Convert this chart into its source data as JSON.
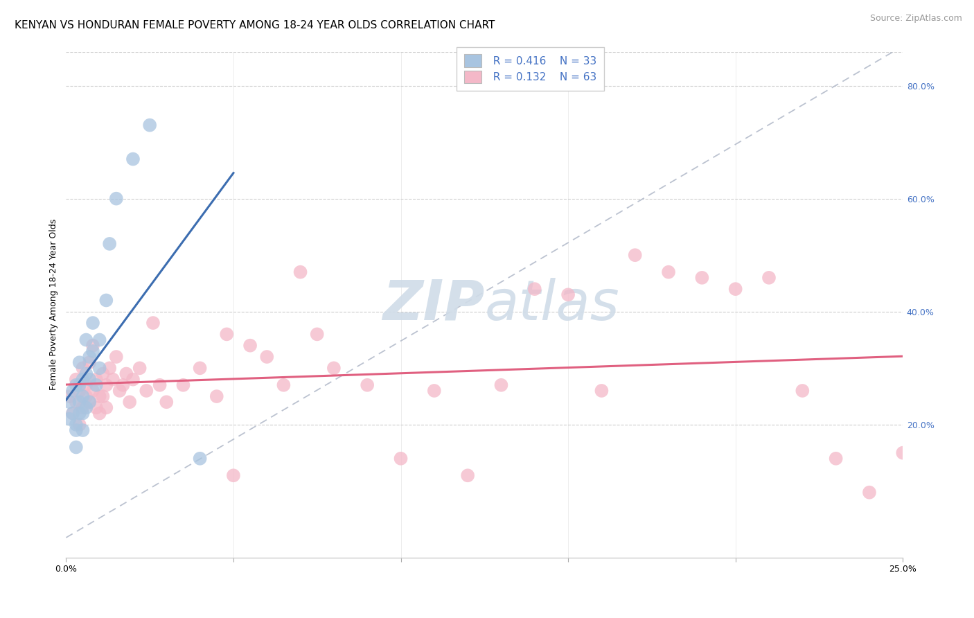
{
  "title": "KENYAN VS HONDURAN FEMALE POVERTY AMONG 18-24 YEAR OLDS CORRELATION CHART",
  "source": "Source: ZipAtlas.com",
  "xlabel_bottom_left": "0.0%",
  "xlabel_bottom_right": "25.0%",
  "ylabel": "Female Poverty Among 18-24 Year Olds",
  "right_yticks": [
    0.2,
    0.4,
    0.6,
    0.8
  ],
  "right_yticklabels": [
    "20.0%",
    "40.0%",
    "60.0%",
    "80.0%"
  ],
  "kenyan_color": "#a8c4e0",
  "honduran_color": "#f4b8c8",
  "kenyan_line_color": "#3c6db0",
  "honduran_line_color": "#e06080",
  "diagonal_color": "#b0b8c8",
  "legend_R1": "R = 0.416",
  "legend_N1": "N = 33",
  "legend_R2": "R = 0.132",
  "legend_N2": "N = 63",
  "xmin": 0.0,
  "xmax": 0.25,
  "ymin": -0.035,
  "ymax": 0.86,
  "kenyan_x": [
    0.001,
    0.001,
    0.002,
    0.002,
    0.003,
    0.003,
    0.003,
    0.003,
    0.004,
    0.004,
    0.004,
    0.004,
    0.005,
    0.005,
    0.005,
    0.005,
    0.006,
    0.006,
    0.006,
    0.007,
    0.007,
    0.007,
    0.008,
    0.008,
    0.009,
    0.01,
    0.01,
    0.012,
    0.013,
    0.015,
    0.02,
    0.025,
    0.04
  ],
  "kenyan_y": [
    0.24,
    0.21,
    0.26,
    0.22,
    0.2,
    0.27,
    0.19,
    0.16,
    0.24,
    0.22,
    0.31,
    0.27,
    0.25,
    0.22,
    0.19,
    0.28,
    0.23,
    0.35,
    0.29,
    0.24,
    0.32,
    0.28,
    0.38,
    0.33,
    0.27,
    0.35,
    0.3,
    0.42,
    0.52,
    0.6,
    0.67,
    0.73,
    0.14
  ],
  "honduran_x": [
    0.001,
    0.002,
    0.003,
    0.003,
    0.004,
    0.004,
    0.005,
    0.005,
    0.006,
    0.006,
    0.007,
    0.007,
    0.008,
    0.008,
    0.009,
    0.009,
    0.01,
    0.01,
    0.011,
    0.011,
    0.012,
    0.012,
    0.013,
    0.014,
    0.015,
    0.016,
    0.017,
    0.018,
    0.019,
    0.02,
    0.022,
    0.024,
    0.026,
    0.028,
    0.03,
    0.035,
    0.04,
    0.045,
    0.048,
    0.05,
    0.055,
    0.06,
    0.065,
    0.07,
    0.075,
    0.08,
    0.09,
    0.1,
    0.11,
    0.12,
    0.13,
    0.14,
    0.15,
    0.16,
    0.17,
    0.18,
    0.19,
    0.2,
    0.21,
    0.22,
    0.23,
    0.24,
    0.25
  ],
  "honduran_y": [
    0.25,
    0.22,
    0.28,
    0.24,
    0.2,
    0.26,
    0.23,
    0.3,
    0.25,
    0.27,
    0.24,
    0.31,
    0.26,
    0.34,
    0.23,
    0.28,
    0.25,
    0.22,
    0.29,
    0.25,
    0.27,
    0.23,
    0.3,
    0.28,
    0.32,
    0.26,
    0.27,
    0.29,
    0.24,
    0.28,
    0.3,
    0.26,
    0.38,
    0.27,
    0.24,
    0.27,
    0.3,
    0.25,
    0.36,
    0.11,
    0.34,
    0.32,
    0.27,
    0.47,
    0.36,
    0.3,
    0.27,
    0.14,
    0.26,
    0.11,
    0.27,
    0.44,
    0.43,
    0.26,
    0.5,
    0.47,
    0.46,
    0.44,
    0.46,
    0.26,
    0.14,
    0.08,
    0.15
  ],
  "watermark_top": "ZIP",
  "watermark_bottom": "atlas",
  "watermark_color": "#d0dce8",
  "title_fontsize": 11,
  "axis_label_fontsize": 9,
  "tick_fontsize": 9,
  "legend_fontsize": 11,
  "source_fontsize": 9
}
